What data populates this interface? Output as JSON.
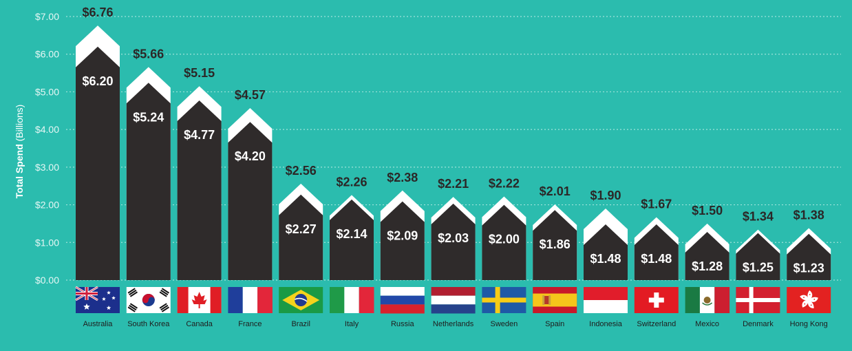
{
  "chart_data": {
    "type": "bar",
    "ylabel_bold": "Total Spend",
    "ylabel_rest": "(Billions)",
    "ylim": [
      0,
      7
    ],
    "y_ticks": [
      "$0.00",
      "$1.00",
      "$2.00",
      "$3.00",
      "$4.00",
      "$5.00",
      "$6.00",
      "$7.00"
    ],
    "grid": true,
    "categories": [
      "Australia",
      "South Korea",
      "Canada",
      "France",
      "Brazil",
      "Italy",
      "Russia",
      "Netherlands",
      "Sweden",
      "Spain",
      "Indonesia",
      "Switzerland",
      "Mexico",
      "Denmark",
      "Hong Kong"
    ],
    "series": [
      {
        "values": [
          6.76,
          5.66,
          5.15,
          4.57,
          2.56,
          2.26,
          2.38,
          2.21,
          2.22,
          2.01,
          1.9,
          1.67,
          1.5,
          1.34,
          1.38
        ],
        "labels": [
          "$6.76",
          "$5.66",
          "$5.15",
          "$4.57",
          "$2.56",
          "$2.26",
          "$2.38",
          "$2.21",
          "$2.22",
          "$2.01",
          "$1.90",
          "$1.67",
          "$1.50",
          "$1.34",
          "$1.38"
        ]
      },
      {
        "values": [
          6.2,
          5.24,
          4.77,
          4.2,
          2.27,
          2.14,
          2.09,
          2.03,
          2.0,
          1.86,
          1.48,
          1.48,
          1.28,
          1.25,
          1.23
        ],
        "labels": [
          "$6.20",
          "$5.24",
          "$4.77",
          "$4.20",
          "$2.27",
          "$2.14",
          "$2.09",
          "$2.03",
          "$2.00",
          "$1.86",
          "$1.48",
          "$1.48",
          "$1.28",
          "$1.25",
          "$1.23"
        ]
      }
    ],
    "flags": [
      "flag-australia-icon",
      "flag-south-korea-icon",
      "flag-canada-icon",
      "flag-france-icon",
      "flag-brazil-icon",
      "flag-italy-icon",
      "flag-russia-icon",
      "flag-netherlands-icon",
      "flag-sweden-icon",
      "flag-spain-icon",
      "flag-indonesia-icon",
      "flag-switzerland-icon",
      "flag-mexico-icon",
      "flag-denmark-icon",
      "flag-hong-kong-icon"
    ],
    "colors": {
      "background": "#2bbcae",
      "outer_bar": "#ffffff",
      "inner_bar": "#2f2b2b",
      "grid": "#9fe3da"
    }
  }
}
